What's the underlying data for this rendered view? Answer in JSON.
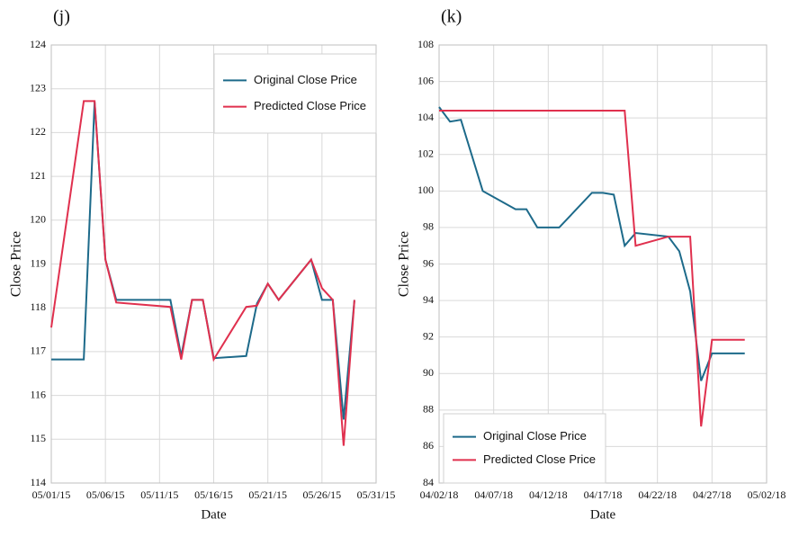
{
  "chart_data": [
    {
      "type": "line",
      "title": "(j)",
      "xlabel": "Date",
      "ylabel": "Close Price",
      "x": [
        "05/01/15",
        "05/04/15",
        "05/05/15",
        "05/06/15",
        "05/07/15",
        "05/12/15",
        "05/13/15",
        "05/14/15",
        "05/15/15",
        "05/16/15",
        "05/19/15",
        "05/20/15",
        "05/21/15",
        "05/22/15",
        "05/25/15",
        "05/26/15",
        "05/27/15",
        "05/28/15",
        "05/29/15"
      ],
      "series": [
        {
          "name": "Original Close Price",
          "color": "#1d6a8a",
          "values": [
            116.82,
            116.82,
            122.7,
            119.1,
            118.18,
            118.18,
            116.9,
            118.18,
            118.18,
            116.85,
            116.9,
            118.1,
            118.55,
            118.18,
            119.1,
            118.18,
            118.18,
            115.45,
            118.18
          ]
        },
        {
          "name": "Predicted Close Price",
          "color": "#e0304e",
          "values": [
            117.55,
            122.72,
            122.72,
            119.1,
            118.12,
            118.02,
            116.82,
            118.18,
            118.18,
            116.82,
            118.02,
            118.05,
            118.55,
            118.18,
            119.1,
            118.45,
            118.18,
            114.85,
            118.18
          ]
        }
      ],
      "xlim": [
        "05/01/15",
        "05/31/15"
      ],
      "xticks": [
        "05/01/15",
        "05/06/15",
        "05/11/15",
        "05/16/15",
        "05/21/15",
        "05/26/15",
        "05/31/15"
      ],
      "ylim": [
        114,
        124
      ],
      "yticks": [
        114,
        115,
        116,
        117,
        118,
        119,
        120,
        121,
        122,
        123,
        124
      ],
      "grid": true,
      "legend": "upper right"
    },
    {
      "type": "line",
      "title": "(k)",
      "xlabel": "Date",
      "ylabel": "Close Price",
      "x": [
        "04/02/18",
        "04/03/18",
        "04/04/18",
        "04/06/18",
        "04/09/18",
        "04/10/18",
        "04/11/18",
        "04/13/18",
        "04/16/18",
        "04/17/18",
        "04/18/18",
        "04/19/18",
        "04/20/18",
        "04/23/18",
        "04/24/18",
        "04/25/18",
        "04/26/18",
        "04/27/18",
        "04/30/18"
      ],
      "series": [
        {
          "name": "Original Close Price",
          "color": "#1d6a8a",
          "values": [
            104.6,
            103.8,
            103.9,
            100,
            99,
            99,
            98,
            98,
            99.9,
            99.9,
            99.8,
            97,
            97.7,
            97.5,
            96.7,
            94.5,
            89.6,
            91.1,
            91.1
          ]
        },
        {
          "name": "Predicted Close Price",
          "color": "#e0304e",
          "values": [
            104.4,
            104.4,
            104.4,
            104.4,
            104.4,
            104.4,
            104.4,
            104.4,
            104.4,
            104.4,
            104.4,
            104.4,
            97,
            97.5,
            97.5,
            97.5,
            87.1,
            91.85,
            91.85
          ]
        }
      ],
      "xlim": [
        "04/02/18",
        "05/02/18"
      ],
      "xticks": [
        "04/02/18",
        "04/07/18",
        "04/12/18",
        "04/17/18",
        "04/22/18",
        "04/27/18",
        "05/02/18"
      ],
      "ylim": [
        84,
        108
      ],
      "yticks": [
        84,
        86,
        88,
        90,
        92,
        94,
        96,
        98,
        100,
        102,
        104,
        106,
        108
      ],
      "grid": true,
      "legend": "lower left"
    }
  ]
}
